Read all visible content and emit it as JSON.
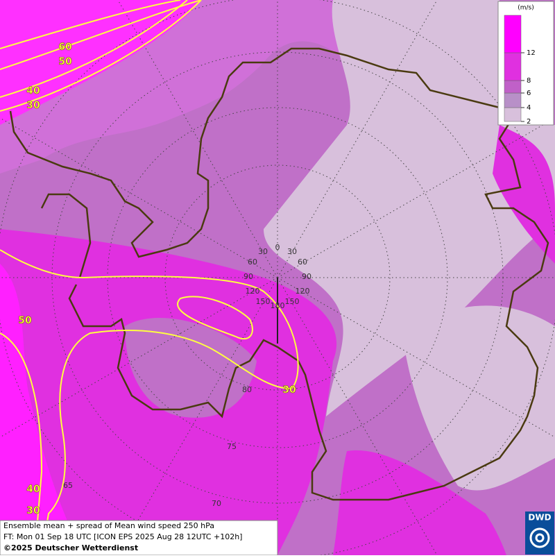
{
  "legend": {
    "unit": "(m/s)",
    "ticks": [
      2,
      4,
      6,
      8,
      12
    ]
  },
  "contour_labels": [
    60,
    50,
    40,
    30,
    50,
    40,
    30,
    30
  ],
  "longitude_labels": [
    0,
    30,
    30,
    60,
    60,
    90,
    90,
    120,
    120,
    150,
    150,
    180
  ],
  "latitude_labels": [
    80,
    75,
    70,
    65
  ],
  "caption": [
    "Ensemble mean + spread of Mean wind speed 250 hPa",
    "FT: Mon 01 Sep 18 UTC [ICON EPS 2025 Aug 28 12UTC +102h]",
    "©2025 Deutscher Wetterdienst"
  ],
  "logo": "DWD"
}
